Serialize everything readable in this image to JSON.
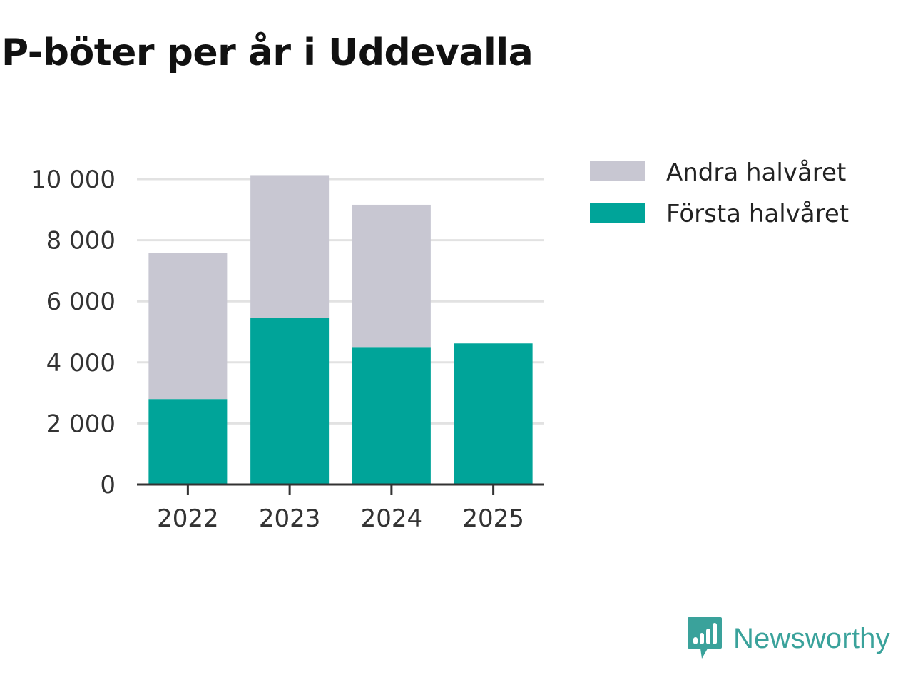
{
  "chart_data": {
    "type": "bar",
    "stacked": true,
    "title": "P-böter per år i Uddevalla",
    "categories": [
      "2022",
      "2023",
      "2024",
      "2025"
    ],
    "series": [
      {
        "name": "Första halvåret",
        "color": "#00a499",
        "values": [
          2800,
          5450,
          4480,
          4620
        ]
      },
      {
        "name": "Andra halvåret",
        "color": "#c8c7d2",
        "values": [
          4770,
          4680,
          4680,
          0
        ]
      }
    ],
    "y_ticks": [
      0,
      2000,
      4000,
      6000,
      8000,
      10000
    ],
    "y_tick_labels": [
      "0",
      "2 000",
      "4 000",
      "6 000",
      "8 000",
      "10 000"
    ],
    "ylim": [
      0,
      10000
    ],
    "xlabel": "",
    "ylabel": "",
    "legend": {
      "position": "top-right",
      "entries": [
        "Andra halvåret",
        "Första halvåret"
      ]
    }
  },
  "brand": {
    "name": "Newsworthy",
    "color": "#3aa29b"
  }
}
